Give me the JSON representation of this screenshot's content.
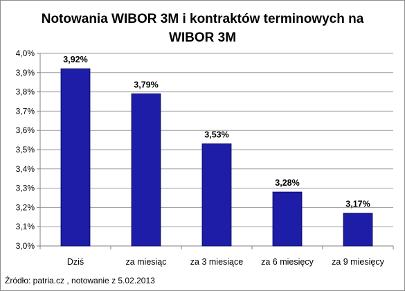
{
  "chart_data": {
    "type": "bar",
    "title_lines": [
      "Notowania WIBOR 3M i kontraktów terminowych na",
      "WIBOR 3M"
    ],
    "categories": [
      "Dziś",
      "za miesiąc",
      "za 3 miesiące",
      "za 6 miesięcy",
      "za 9 miesięcy"
    ],
    "values": [
      3.92,
      3.79,
      3.53,
      3.28,
      3.17
    ],
    "data_labels": [
      "3,92%",
      "3,79%",
      "3,53%",
      "3,28%",
      "3,17%"
    ],
    "y_ticks": [
      "3,0%",
      "3,1%",
      "3,2%",
      "3,3%",
      "3,4%",
      "3,5%",
      "3,6%",
      "3,7%",
      "3,8%",
      "3,9%",
      "4,0%"
    ],
    "ylim": [
      3.0,
      4.0
    ],
    "xlabel": "",
    "ylabel": "",
    "grid": true,
    "legend": "none",
    "colors": {
      "bar": "#1d1da8",
      "bar_edge": "#0d0d66",
      "grid": "#9a9a9a",
      "axis": "#7f7f7f"
    }
  },
  "source_note": "Źródło: patria.cz , notowanie z 5.02.2013"
}
